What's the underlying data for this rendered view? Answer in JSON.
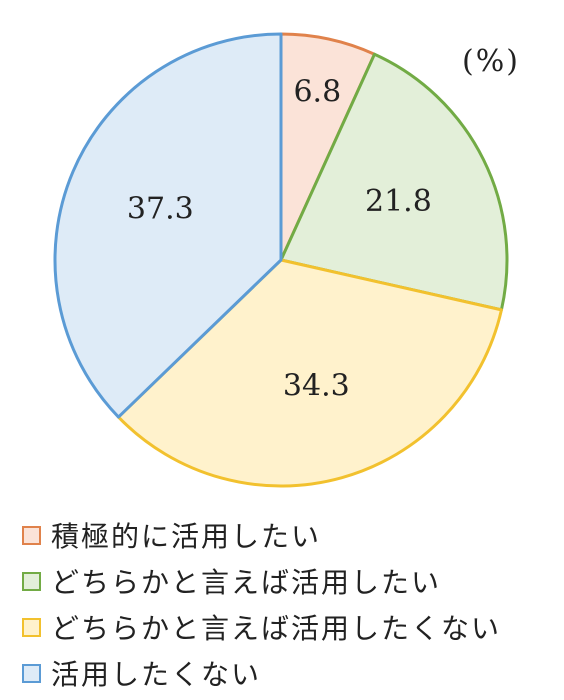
{
  "chart_data": {
    "type": "pie",
    "unit_label": "(%)",
    "start": "top",
    "direction": "clockwise",
    "slices": [
      {
        "label": "積極的に活用したい",
        "value": 6.8,
        "fill": "#fbe3d8",
        "stroke": "#e0824b"
      },
      {
        "label": "どちらかと言えば活用したい",
        "value": 21.8,
        "fill": "#e3efd9",
        "stroke": "#72ab45"
      },
      {
        "label": "どちらかと言えば活用したくない",
        "value": 34.3,
        "fill": "#fff2cc",
        "stroke": "#f2c12e"
      },
      {
        "label": "活用したくない",
        "value": 37.3,
        "fill": "#deebf7",
        "stroke": "#5b9bd5"
      }
    ]
  }
}
